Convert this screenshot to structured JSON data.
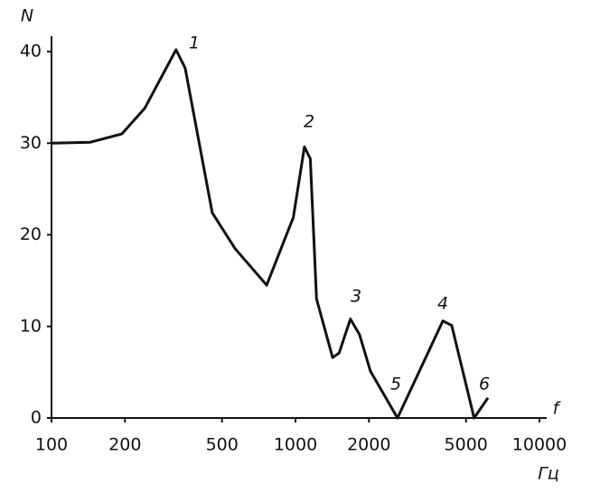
{
  "chart_data": {
    "type": "line",
    "y_label": "N",
    "x_label": "f",
    "x_unit": "Гц",
    "x": [
      100,
      144,
      194,
      241,
      324,
      353,
      456,
      565,
      762,
      980,
      1088,
      1150,
      1220,
      1420,
      1510,
      1680,
      1830,
      2030,
      2620,
      4020,
      4370,
      5400,
      6150
    ],
    "series": [
      {
        "color": "#111111",
        "values": [
          30,
          30.1,
          31,
          33.8,
          40.2,
          38.2,
          22.4,
          18.5,
          14.5,
          21.9,
          29.6,
          28.3,
          13,
          6.6,
          7.1,
          10.8,
          9.1,
          5.1,
          0,
          10.6,
          10.1,
          0,
          2.2
        ]
      }
    ],
    "annotations": [
      "1",
      "2",
      "3",
      "4",
      "5",
      "6"
    ],
    "xscale": "log",
    "xlim": [
      100,
      10000
    ],
    "xticks": [
      100,
      200,
      500,
      1000,
      2000,
      5000,
      10000
    ],
    "ylim": [
      0,
      40
    ],
    "yticks": [
      0,
      10,
      20,
      30,
      40
    ],
    "grid": false
  }
}
